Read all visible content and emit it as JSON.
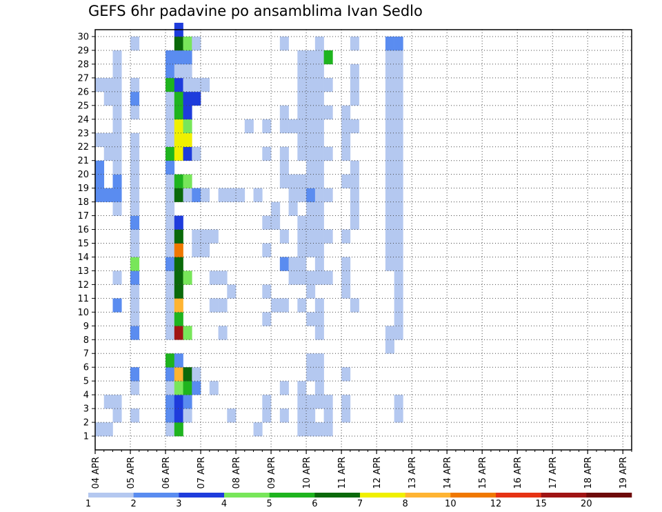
{
  "chart_data": {
    "type": "heatmap",
    "title": "GEFS 6hr padavine po ansamblima Ivan Sedlo",
    "x_tick_labels": [
      "04 APR",
      "05 APR",
      "06 APR",
      "07 APR",
      "08 APR",
      "09 APR",
      "10 APR",
      "11 APR",
      "12 APR",
      "13 APR",
      "14 APR",
      "15 APR",
      "16 APR",
      "17 APR",
      "18 APR",
      "19 APR"
    ],
    "y_tick_labels": [
      "1",
      "2",
      "3",
      "4",
      "5",
      "6",
      "7",
      "8",
      "9",
      "10",
      "11",
      "12",
      "13",
      "14",
      "15",
      "16",
      "17",
      "18",
      "19",
      "20",
      "21",
      "22",
      "23",
      "24",
      "25",
      "26",
      "27",
      "28",
      "29",
      "30"
    ],
    "x_unit": "6-hour step from 04 APR 00Z",
    "ylim": [
      0,
      30
    ],
    "xlim": [
      0,
      61
    ],
    "grid": true,
    "legend": {
      "placement": "bottom",
      "boundaries": [
        "1",
        "2",
        "3",
        "4",
        "5",
        "6",
        "7",
        "8",
        "10",
        "12",
        "15",
        "20"
      ],
      "colors": [
        "#b4c8f0",
        "#5a8cf0",
        "#1e3cdc",
        "#78e65a",
        "#1eb41e",
        "#0a690a",
        "#f0f000",
        "#ffb432",
        "#f07800",
        "#e63214",
        "#a01414",
        "#6e0a0a"
      ]
    },
    "cells": [
      [
        0,
        1,
        0
      ],
      [
        0,
        18,
        1
      ],
      [
        0,
        19,
        1
      ],
      [
        0,
        20,
        1
      ],
      [
        0,
        22,
        0
      ],
      [
        0,
        26,
        0
      ],
      [
        1,
        1,
        0
      ],
      [
        1,
        3,
        0
      ],
      [
        1,
        18,
        1
      ],
      [
        1,
        21,
        0
      ],
      [
        1,
        22,
        0
      ],
      [
        1,
        25,
        0
      ],
      [
        1,
        26,
        0
      ],
      [
        2,
        2,
        0
      ],
      [
        2,
        3,
        0
      ],
      [
        2,
        10,
        1
      ],
      [
        2,
        12,
        0
      ],
      [
        2,
        17,
        0
      ],
      [
        2,
        18,
        1
      ],
      [
        2,
        19,
        1
      ],
      [
        2,
        20,
        0
      ],
      [
        2,
        21,
        0
      ],
      [
        2,
        22,
        0
      ],
      [
        2,
        23,
        0
      ],
      [
        2,
        24,
        0
      ],
      [
        2,
        25,
        0
      ],
      [
        2,
        26,
        0
      ],
      [
        2,
        27,
        0
      ],
      [
        2,
        28,
        0
      ],
      [
        4,
        2,
        0
      ],
      [
        4,
        4,
        0
      ],
      [
        4,
        5,
        1
      ],
      [
        4,
        8,
        1
      ],
      [
        4,
        9,
        0
      ],
      [
        4,
        10,
        0
      ],
      [
        4,
        11,
        0
      ],
      [
        4,
        12,
        1
      ],
      [
        4,
        13,
        3
      ],
      [
        4,
        14,
        0
      ],
      [
        4,
        15,
        0
      ],
      [
        4,
        16,
        1
      ],
      [
        4,
        17,
        0
      ],
      [
        4,
        18,
        0
      ],
      [
        4,
        19,
        0
      ],
      [
        4,
        20,
        0
      ],
      [
        4,
        21,
        0
      ],
      [
        4,
        22,
        0
      ],
      [
        4,
        24,
        0
      ],
      [
        4,
        25,
        1
      ],
      [
        4,
        26,
        0
      ],
      [
        4,
        29,
        0
      ],
      [
        8,
        1,
        0
      ],
      [
        8,
        2,
        1
      ],
      [
        8,
        3,
        1
      ],
      [
        8,
        4,
        0
      ],
      [
        8,
        5,
        1
      ],
      [
        8,
        6,
        4
      ],
      [
        8,
        8,
        0
      ],
      [
        8,
        9,
        0
      ],
      [
        8,
        10,
        0
      ],
      [
        8,
        11,
        0
      ],
      [
        8,
        12,
        0
      ],
      [
        8,
        13,
        1
      ],
      [
        8,
        14,
        0
      ],
      [
        8,
        15,
        0
      ],
      [
        8,
        16,
        0
      ],
      [
        8,
        17,
        0
      ],
      [
        8,
        18,
        0
      ],
      [
        8,
        19,
        0
      ],
      [
        8,
        20,
        1
      ],
      [
        8,
        21,
        4
      ],
      [
        8,
        22,
        0
      ],
      [
        8,
        23,
        0
      ],
      [
        8,
        24,
        0
      ],
      [
        8,
        25,
        0
      ],
      [
        8,
        26,
        4
      ],
      [
        8,
        27,
        1
      ],
      [
        8,
        28,
        1
      ],
      [
        9,
        1,
        4
      ],
      [
        9,
        2,
        2
      ],
      [
        9,
        3,
        2
      ],
      [
        9,
        4,
        3
      ],
      [
        9,
        5,
        7
      ],
      [
        9,
        6,
        1
      ],
      [
        9,
        8,
        10
      ],
      [
        9,
        9,
        4
      ],
      [
        9,
        10,
        7
      ],
      [
        9,
        11,
        5
      ],
      [
        9,
        12,
        5
      ],
      [
        9,
        13,
        5
      ],
      [
        9,
        14,
        8
      ],
      [
        9,
        15,
        5
      ],
      [
        9,
        16,
        2
      ],
      [
        9,
        18,
        5
      ],
      [
        9,
        19,
        4
      ],
      [
        9,
        21,
        6
      ],
      [
        9,
        22,
        6
      ],
      [
        9,
        23,
        6
      ],
      [
        9,
        24,
        4
      ],
      [
        9,
        25,
        4
      ],
      [
        9,
        26,
        2
      ],
      [
        9,
        27,
        0
      ],
      [
        9,
        28,
        1
      ],
      [
        9,
        29,
        5
      ],
      [
        9,
        30,
        2
      ],
      [
        10,
        2,
        0
      ],
      [
        10,
        3,
        1
      ],
      [
        10,
        4,
        4
      ],
      [
        10,
        5,
        5
      ],
      [
        10,
        8,
        3
      ],
      [
        10,
        12,
        3
      ],
      [
        10,
        18,
        0
      ],
      [
        10,
        19,
        3
      ],
      [
        10,
        21,
        2
      ],
      [
        10,
        22,
        6
      ],
      [
        10,
        23,
        3
      ],
      [
        10,
        24,
        2
      ],
      [
        10,
        25,
        2
      ],
      [
        10,
        26,
        0
      ],
      [
        10,
        27,
        0
      ],
      [
        10,
        28,
        1
      ],
      [
        10,
        29,
        3
      ],
      [
        11,
        4,
        1
      ],
      [
        11,
        5,
        0
      ],
      [
        11,
        14,
        0
      ],
      [
        11,
        15,
        0
      ],
      [
        11,
        18,
        1
      ],
      [
        11,
        21,
        0
      ],
      [
        11,
        25,
        2
      ],
      [
        11,
        26,
        0
      ],
      [
        11,
        29,
        0
      ],
      [
        12,
        14,
        0
      ],
      [
        12,
        15,
        0
      ],
      [
        12,
        18,
        0
      ],
      [
        12,
        26,
        0
      ],
      [
        13,
        4,
        0
      ],
      [
        13,
        10,
        0
      ],
      [
        13,
        12,
        0
      ],
      [
        13,
        15,
        0
      ],
      [
        14,
        8,
        0
      ],
      [
        14,
        10,
        0
      ],
      [
        14,
        12,
        0
      ],
      [
        14,
        18,
        0
      ],
      [
        15,
        2,
        0
      ],
      [
        15,
        11,
        0
      ],
      [
        15,
        18,
        0
      ],
      [
        16,
        18,
        0
      ],
      [
        17,
        23,
        0
      ],
      [
        18,
        1,
        0
      ],
      [
        18,
        18,
        0
      ],
      [
        19,
        2,
        0
      ],
      [
        19,
        3,
        0
      ],
      [
        19,
        9,
        0
      ],
      [
        19,
        11,
        0
      ],
      [
        19,
        14,
        0
      ],
      [
        19,
        16,
        0
      ],
      [
        19,
        21,
        0
      ],
      [
        19,
        23,
        0
      ],
      [
        20,
        10,
        0
      ],
      [
        20,
        16,
        0
      ],
      [
        20,
        17,
        0
      ],
      [
        21,
        2,
        0
      ],
      [
        21,
        4,
        0
      ],
      [
        21,
        10,
        0
      ],
      [
        21,
        13,
        1
      ],
      [
        21,
        15,
        0
      ],
      [
        21,
        19,
        0
      ],
      [
        21,
        20,
        0
      ],
      [
        21,
        21,
        0
      ],
      [
        21,
        23,
        0
      ],
      [
        21,
        24,
        0
      ],
      [
        21,
        29,
        0
      ],
      [
        22,
        12,
        0
      ],
      [
        22,
        13,
        0
      ],
      [
        22,
        17,
        0
      ],
      [
        22,
        18,
        0
      ],
      [
        22,
        19,
        0
      ],
      [
        22,
        23,
        0
      ],
      [
        23,
        1,
        0
      ],
      [
        23,
        2,
        0
      ],
      [
        23,
        3,
        0
      ],
      [
        23,
        4,
        0
      ],
      [
        23,
        10,
        0
      ],
      [
        23,
        12,
        0
      ],
      [
        23,
        13,
        0
      ],
      [
        23,
        14,
        0
      ],
      [
        23,
        15,
        0
      ],
      [
        23,
        16,
        0
      ],
      [
        23,
        18,
        0
      ],
      [
        23,
        19,
        0
      ],
      [
        23,
        21,
        0
      ],
      [
        23,
        22,
        0
      ],
      [
        23,
        23,
        0
      ],
      [
        23,
        24,
        0
      ],
      [
        23,
        25,
        0
      ],
      [
        23,
        26,
        0
      ],
      [
        23,
        27,
        0
      ],
      [
        23,
        28,
        0
      ],
      [
        24,
        1,
        0
      ],
      [
        24,
        2,
        0
      ],
      [
        24,
        3,
        0
      ],
      [
        24,
        5,
        0
      ],
      [
        24,
        6,
        0
      ],
      [
        24,
        9,
        0
      ],
      [
        24,
        11,
        0
      ],
      [
        24,
        12,
        0
      ],
      [
        24,
        14,
        0
      ],
      [
        24,
        15,
        0
      ],
      [
        24,
        16,
        0
      ],
      [
        24,
        17,
        0
      ],
      [
        24,
        18,
        1
      ],
      [
        24,
        19,
        0
      ],
      [
        24,
        20,
        0
      ],
      [
        24,
        21,
        0
      ],
      [
        24,
        22,
        0
      ],
      [
        24,
        23,
        0
      ],
      [
        24,
        24,
        0
      ],
      [
        24,
        25,
        0
      ],
      [
        24,
        26,
        0
      ],
      [
        24,
        27,
        0
      ],
      [
        24,
        28,
        0
      ],
      [
        25,
        1,
        0
      ],
      [
        25,
        3,
        0
      ],
      [
        25,
        4,
        0
      ],
      [
        25,
        5,
        0
      ],
      [
        25,
        6,
        0
      ],
      [
        25,
        8,
        0
      ],
      [
        25,
        9,
        0
      ],
      [
        25,
        10,
        0
      ],
      [
        25,
        12,
        0
      ],
      [
        25,
        13,
        0
      ],
      [
        25,
        14,
        0
      ],
      [
        25,
        15,
        0
      ],
      [
        25,
        16,
        0
      ],
      [
        25,
        17,
        0
      ],
      [
        25,
        18,
        0
      ],
      [
        25,
        19,
        0
      ],
      [
        25,
        20,
        0
      ],
      [
        25,
        21,
        0
      ],
      [
        25,
        22,
        0
      ],
      [
        25,
        23,
        0
      ],
      [
        25,
        24,
        0
      ],
      [
        25,
        25,
        0
      ],
      [
        25,
        26,
        0
      ],
      [
        25,
        27,
        0
      ],
      [
        25,
        28,
        0
      ],
      [
        25,
        29,
        0
      ],
      [
        26,
        1,
        0
      ],
      [
        26,
        2,
        0
      ],
      [
        26,
        3,
        0
      ],
      [
        26,
        12,
        0
      ],
      [
        26,
        15,
        0
      ],
      [
        26,
        18,
        0
      ],
      [
        26,
        21,
        0
      ],
      [
        26,
        24,
        0
      ],
      [
        26,
        26,
        0
      ],
      [
        26,
        28,
        4
      ],
      [
        28,
        2,
        0
      ],
      [
        28,
        3,
        0
      ],
      [
        28,
        5,
        0
      ],
      [
        28,
        11,
        0
      ],
      [
        28,
        12,
        0
      ],
      [
        28,
        13,
        0
      ],
      [
        28,
        15,
        0
      ],
      [
        28,
        19,
        0
      ],
      [
        28,
        21,
        0
      ],
      [
        28,
        22,
        0
      ],
      [
        28,
        23,
        0
      ],
      [
        28,
        24,
        0
      ],
      [
        29,
        10,
        0
      ],
      [
        29,
        16,
        0
      ],
      [
        29,
        17,
        0
      ],
      [
        29,
        18,
        0
      ],
      [
        29,
        19,
        0
      ],
      [
        29,
        20,
        0
      ],
      [
        29,
        23,
        0
      ],
      [
        29,
        25,
        0
      ],
      [
        29,
        26,
        0
      ],
      [
        29,
        27,
        0
      ],
      [
        29,
        29,
        0
      ],
      [
        33,
        7,
        0
      ],
      [
        33,
        8,
        0
      ],
      [
        33,
        13,
        0
      ],
      [
        33,
        14,
        0
      ],
      [
        33,
        15,
        0
      ],
      [
        33,
        16,
        0
      ],
      [
        33,
        17,
        0
      ],
      [
        33,
        18,
        0
      ],
      [
        33,
        19,
        0
      ],
      [
        33,
        20,
        0
      ],
      [
        33,
        21,
        0
      ],
      [
        33,
        22,
        0
      ],
      [
        33,
        23,
        0
      ],
      [
        33,
        24,
        0
      ],
      [
        33,
        25,
        0
      ],
      [
        33,
        26,
        0
      ],
      [
        33,
        27,
        0
      ],
      [
        33,
        28,
        0
      ],
      [
        33,
        29,
        1
      ],
      [
        34,
        2,
        0
      ],
      [
        34,
        3,
        0
      ],
      [
        34,
        8,
        0
      ],
      [
        34,
        9,
        0
      ],
      [
        34,
        10,
        0
      ],
      [
        34,
        11,
        0
      ],
      [
        34,
        12,
        0
      ],
      [
        34,
        13,
        0
      ],
      [
        34,
        14,
        0
      ],
      [
        34,
        15,
        0
      ],
      [
        34,
        16,
        0
      ],
      [
        34,
        17,
        0
      ],
      [
        34,
        18,
        0
      ],
      [
        34,
        19,
        0
      ],
      [
        34,
        20,
        0
      ],
      [
        34,
        21,
        0
      ],
      [
        34,
        22,
        0
      ],
      [
        34,
        23,
        0
      ],
      [
        34,
        24,
        0
      ],
      [
        34,
        25,
        0
      ],
      [
        34,
        26,
        0
      ],
      [
        34,
        27,
        0
      ],
      [
        34,
        28,
        0
      ],
      [
        34,
        29,
        1
      ]
    ]
  }
}
